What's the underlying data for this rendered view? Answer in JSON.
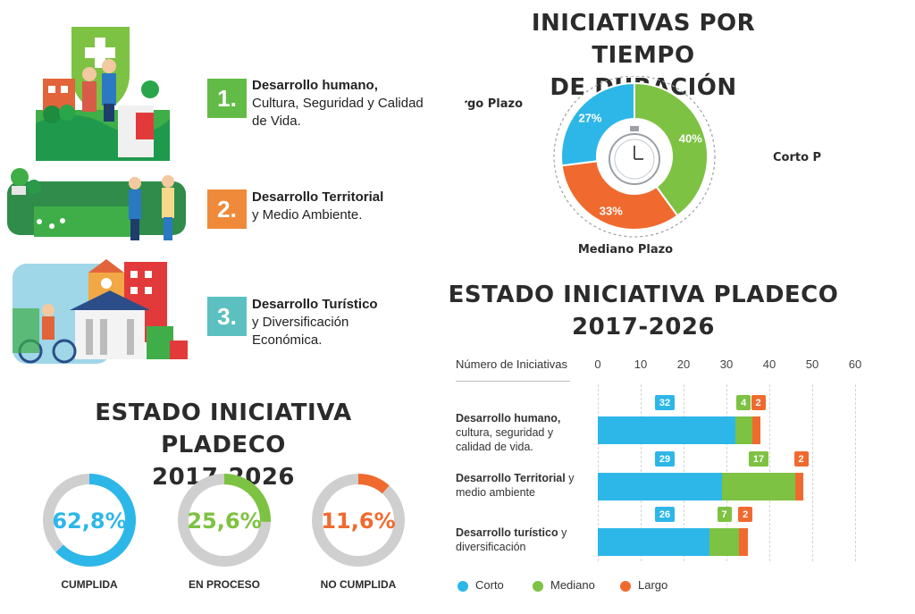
{
  "colors": {
    "blue": "#2db7e8",
    "green": "#7dc242",
    "orange": "#f06a2f",
    "teal": "#4cc0b7",
    "gray": "#cfcfcf",
    "num1": "#62bb46",
    "num2": "#ef8a3a",
    "num3": "#5cc0c0"
  },
  "axes": [
    {
      "num": "1.",
      "bold": "Desarrollo humano,",
      "rest": "Cultura, Seguridad y Calidad de Vida."
    },
    {
      "num": "2.",
      "bold": "Desarrollo Territorial",
      "rest": "y Medio Ambiente."
    },
    {
      "num": "3.",
      "bold": "Desarrollo Turístico",
      "rest": "y Diversificación Económica."
    }
  ],
  "donut": {
    "title_line1": "INICIATIVAS POR TIEMPO",
    "title_line2": "DE DURACIÓN",
    "center_icon": "stopwatch-icon"
  },
  "bars": {
    "title_line1": "ESTADO INICIATIVA PLADECO",
    "title_line2": "2017-2026",
    "axis_label": "Número de Iniciativas"
  },
  "status": {
    "title_line1": "ESTADO INICIATIVA PLADECO",
    "title_line2": "2017-2026"
  },
  "chart_data": [
    {
      "type": "pie",
      "title": "INICIATIVAS POR TIEMPO DE DURACIÓN",
      "categories": [
        "Corto Plazo",
        "Mediano Plazo",
        "Largo Plazo"
      ],
      "values": [
        40,
        33,
        27
      ],
      "value_labels": [
        "40%",
        "33%",
        "27%"
      ],
      "colors": [
        "#7dc242",
        "#f06a2f",
        "#2db7e8"
      ]
    },
    {
      "type": "bar",
      "orientation": "horizontal",
      "stacked": true,
      "title": "ESTADO INICIATIVA PLADECO 2017-2026",
      "xlabel": "Número de Iniciativas",
      "xlim": [
        0,
        60
      ],
      "xticks": [
        "0",
        "10",
        "20",
        "30",
        "40",
        "50",
        "60"
      ],
      "categories": [
        {
          "bold": "Desarrollo humano,",
          "rest": "cultura, seguridad y calidad de vida."
        },
        {
          "bold": "Desarrollo Territorial",
          "rest": "y medio ambiente"
        },
        {
          "bold": "Desarrollo turístico",
          "rest": "y diversificación"
        }
      ],
      "series": [
        {
          "name": "Corto",
          "color": "#2db7e8",
          "values": [
            32,
            29,
            26
          ],
          "labels": [
            "32",
            "29",
            "26"
          ]
        },
        {
          "name": "Mediano",
          "color": "#7dc242",
          "values": [
            4,
            17,
            7
          ],
          "labels": [
            "4",
            "17",
            "7"
          ]
        },
        {
          "name": "Largo",
          "color": "#f06a2f",
          "values": [
            2,
            2,
            2
          ],
          "labels": [
            "2",
            "2",
            "2"
          ]
        }
      ]
    },
    {
      "type": "pie",
      "title": "ESTADO INICIATIVA PLADECO 2017-2026",
      "items": [
        {
          "label": "CUMPLIDA",
          "value": 62.8,
          "text": "62,8%",
          "color": "#2db7e8"
        },
        {
          "label": "EN PROCESO",
          "value": 25.6,
          "text": "25,6%",
          "color": "#7dc242"
        },
        {
          "label": "NO CUMPLIDA",
          "value": 11.6,
          "text": "11,6%",
          "color": "#f06a2f"
        }
      ]
    }
  ]
}
